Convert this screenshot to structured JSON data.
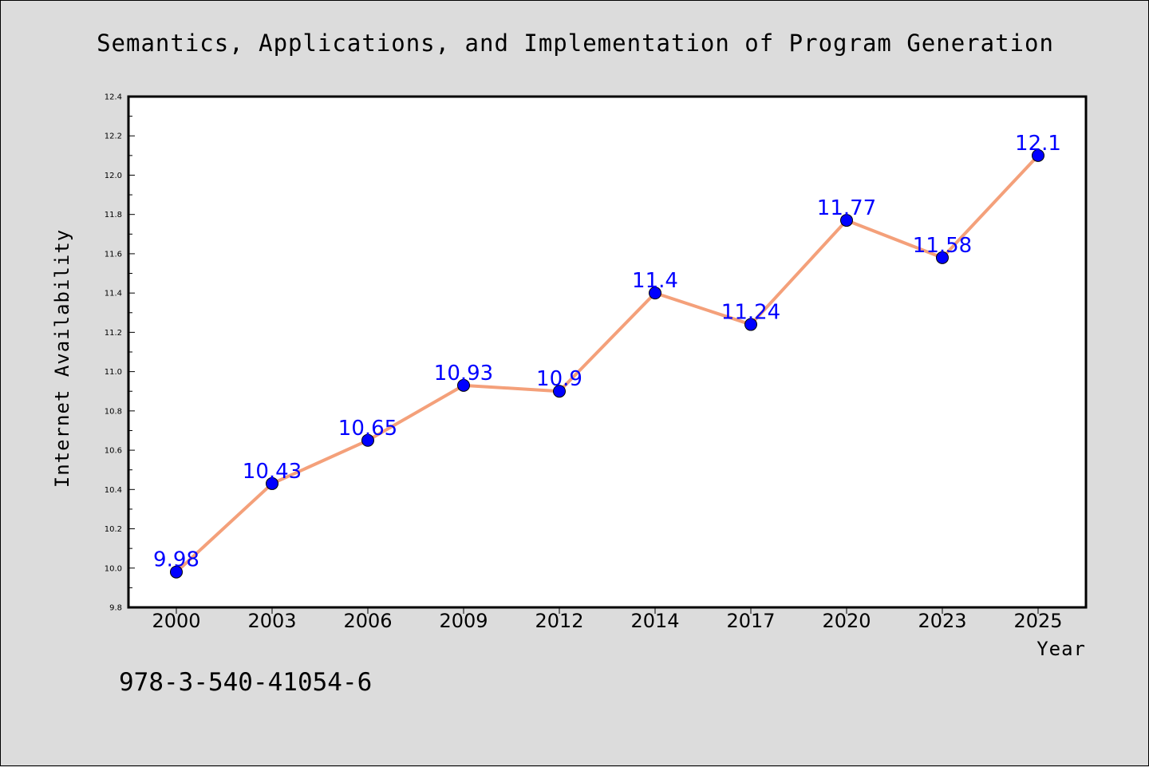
{
  "chart_data": {
    "type": "line",
    "title": "Semantics, Applications, and Implementation of Program Generation",
    "xlabel": "Year",
    "ylabel": "Internet Availability",
    "categories": [
      "2000",
      "2003",
      "2006",
      "2009",
      "2012",
      "2014",
      "2017",
      "2020",
      "2023",
      "2025"
    ],
    "series": [
      {
        "values": [
          9.98,
          10.43,
          10.65,
          10.93,
          10.9,
          11.4,
          11.24,
          11.77,
          11.58,
          12.1
        ],
        "data_labels": [
          "9.98",
          "10.43",
          "10.65",
          "10.93",
          "10.9",
          "11.4",
          "11.24",
          "11.77",
          "11.58",
          "12.1"
        ],
        "line_color": "#f4a07a",
        "marker_color": "#0000ff"
      }
    ],
    "ylim": [
      9.8,
      12.4
    ],
    "yticks": [
      "9.8",
      "10.0",
      "10.2",
      "10.4",
      "10.6",
      "10.8",
      "11.0",
      "11.2",
      "11.4",
      "11.6",
      "11.8",
      "12.0",
      "12.2",
      "12.4"
    ],
    "grid": false,
    "legend": "none",
    "background": "#dcdcdc",
    "plot_background": "#ffffff"
  },
  "footnote": "978-3-540-41054-6"
}
